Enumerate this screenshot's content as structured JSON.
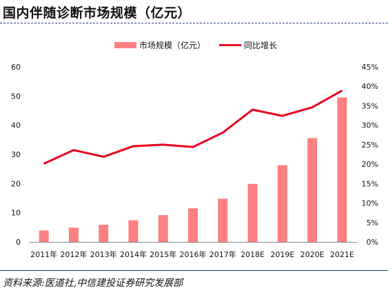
{
  "header": {
    "title": "国内伴随诊断市场规模（亿元）"
  },
  "footer": {
    "source": "资料来源:医道社,中信建投证券研究发展部"
  },
  "colors": {
    "bar": "#ff8080",
    "line": "#e8001c",
    "title_rule": "#1f3b73"
  },
  "chart_data": {
    "type": "bar",
    "categories": [
      "2011年",
      "2012年",
      "2013年",
      "2014年",
      "2015年",
      "2016年",
      "2017年",
      "2018E",
      "2019E",
      "2020E",
      "2021E"
    ],
    "series": [
      {
        "name": "市场规模（亿元）",
        "type": "bar",
        "axis": "left",
        "values": [
          3.9,
          4.9,
          5.9,
          7.4,
          9.2,
          11.5,
          14.8,
          19.9,
          26.3,
          35.6,
          49.5
        ]
      },
      {
        "name": "同比增长",
        "type": "line",
        "axis": "right",
        "values": [
          0.201,
          0.236,
          0.219,
          0.246,
          0.25,
          0.244,
          0.281,
          0.34,
          0.324,
          0.346,
          0.389
        ]
      }
    ],
    "left_axis": {
      "ylim": [
        0,
        60
      ],
      "ticks": [
        "0",
        "10",
        "20",
        "30",
        "40",
        "50",
        "60"
      ]
    },
    "right_axis": {
      "ylim": [
        0,
        0.45
      ],
      "ticks": [
        "0%",
        "5%",
        "10%",
        "15%",
        "20%",
        "25%",
        "30%",
        "35%",
        "40%",
        "45%"
      ]
    },
    "legend_position": "top-center",
    "grid": false
  }
}
